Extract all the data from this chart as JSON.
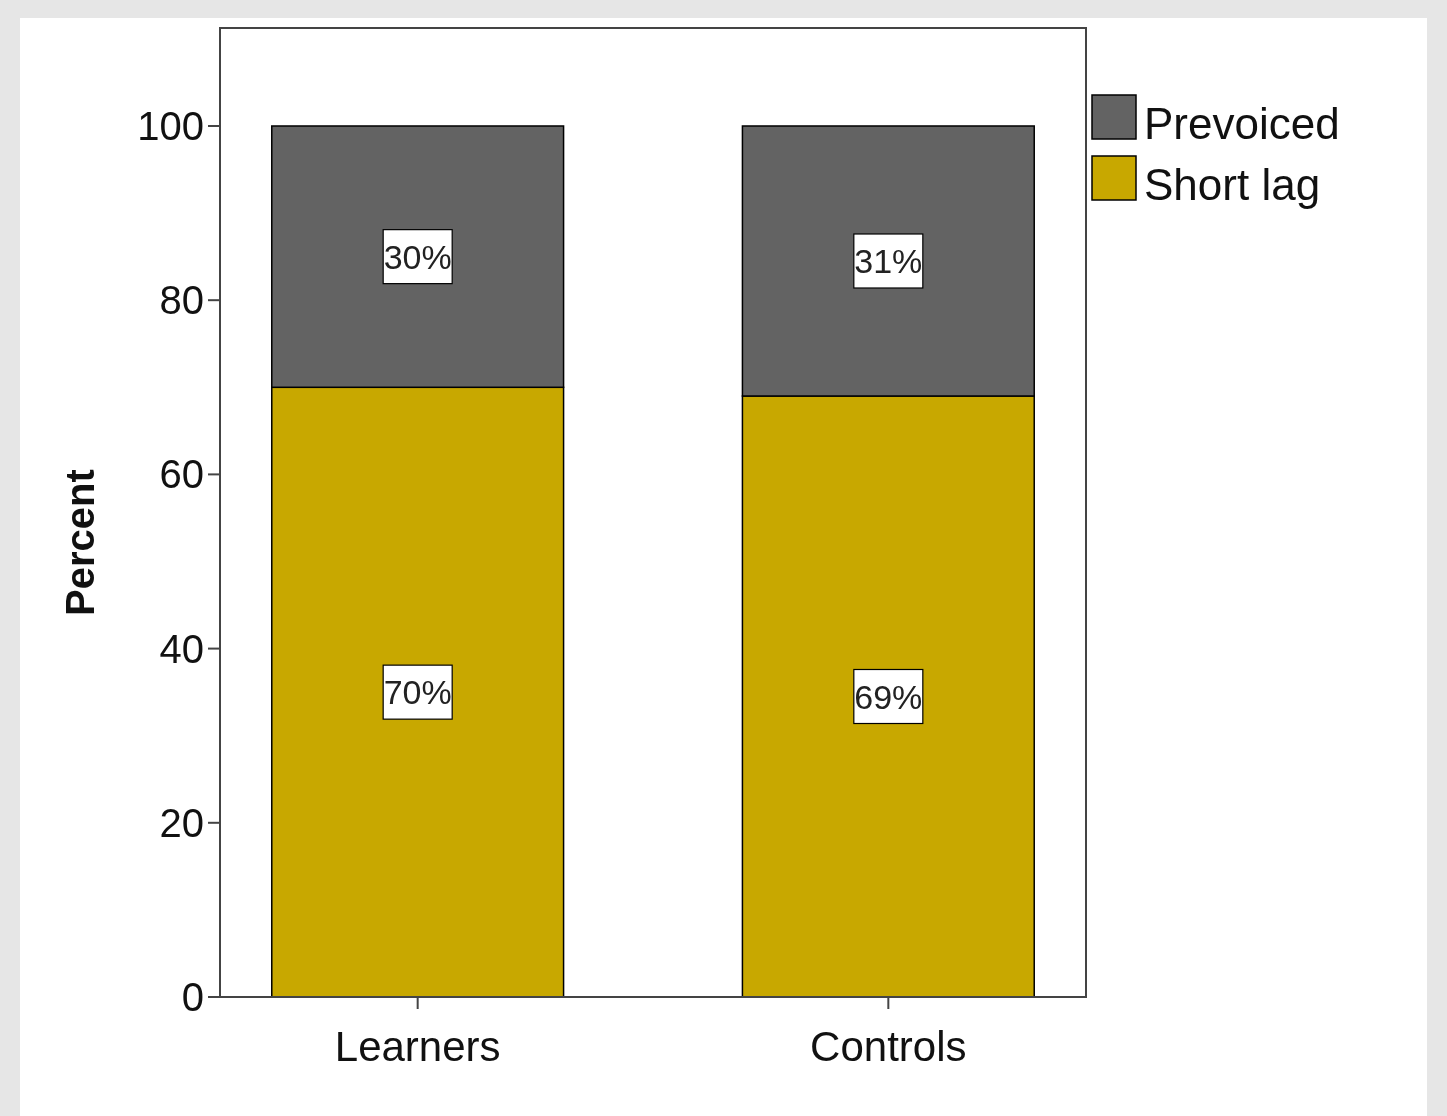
{
  "chart_data": {
    "type": "bar",
    "ylabel": "Percent",
    "categories": [
      "Learners",
      "Controls"
    ],
    "stacked": true,
    "series": [
      {
        "name": "Short lag",
        "color": "#c8a800",
        "values": [
          70,
          69
        ],
        "value_labels": [
          "70%",
          "69%"
        ]
      },
      {
        "name": "Prevoiced",
        "color": "#636363",
        "values": [
          30,
          31
        ],
        "value_labels": [
          "30%",
          "31%"
        ]
      }
    ],
    "ylim": [
      0,
      111.25
    ],
    "yticks": [
      0,
      20,
      40,
      60,
      80,
      100
    ],
    "grid": false,
    "legend": "top right"
  }
}
